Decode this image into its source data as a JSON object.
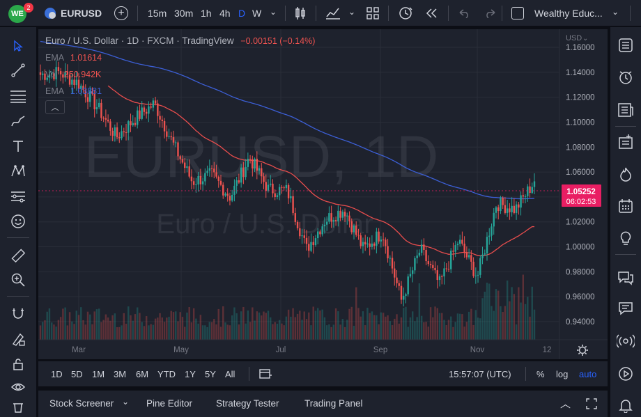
{
  "topbar": {
    "logo_badge": "2",
    "symbol": "EURUSD",
    "intervals": [
      "15m",
      "30m",
      "1h",
      "4h",
      "D",
      "W"
    ],
    "active_interval": "D",
    "layout_name": "Wealthy Educ..."
  },
  "legend": {
    "title": "Euro / U.S. Dollar · 1D · FXCM · TradingView",
    "change": "−0.00151 (−0.14%)",
    "ema1_label": "EMA",
    "ema1_value": "1.01614",
    "vol_label": "Vol",
    "vol_value": "250.942K",
    "ema2_label": "EMA",
    "ema2_value": "1.03881"
  },
  "watermark": {
    "symbol": "EURUSD, 1D",
    "name": "Euro / U.S. Dollar"
  },
  "price_axis": {
    "currency": "USD",
    "ticks": [
      "1.16000",
      "1.14000",
      "1.12000",
      "1.10000",
      "1.08000",
      "1.06000",
      "1.04000",
      "1.02000",
      "1.00000",
      "0.98000",
      "0.96000",
      "0.94000"
    ],
    "last_price": "1.05252",
    "countdown": "06:02:53"
  },
  "time_axis": {
    "labels": [
      "Mar",
      "May",
      "Jul",
      "Sep",
      "Nov",
      "12"
    ]
  },
  "range_bar": {
    "ranges": [
      "1D",
      "5D",
      "1M",
      "3M",
      "6M",
      "YTD",
      "1Y",
      "5Y",
      "All"
    ],
    "clock": "15:57:07 (UTC)",
    "percent": "%",
    "log": "log",
    "auto": "auto"
  },
  "panel_tabs": [
    "Stock Screener",
    "Pine Editor",
    "Strategy Tester",
    "Trading Panel"
  ],
  "colors": {
    "up": "#26a69a",
    "down": "#ef5350",
    "ema_fast": "#e84d4d",
    "ema_slow": "#3c5fd6",
    "accent": "#2962ff",
    "last_price_bg": "#e91e63"
  },
  "chart_data": {
    "type": "candlestick",
    "symbol": "EURUSD",
    "interval": "1D",
    "ylim": [
      0.935,
      1.165
    ],
    "price_path": [
      {
        "date": "Feb-01",
        "price": 1.138
      },
      {
        "date": "Feb-10",
        "price": 1.14
      },
      {
        "date": "Feb-20",
        "price": 1.131
      },
      {
        "date": "Mar-01",
        "price": 1.112
      },
      {
        "date": "Mar-08",
        "price": 1.088
      },
      {
        "date": "Mar-20",
        "price": 1.103
      },
      {
        "date": "Mar-31",
        "price": 1.115
      },
      {
        "date": "Apr-15",
        "price": 1.082
      },
      {
        "date": "Apr-28",
        "price": 1.052
      },
      {
        "date": "May-10",
        "price": 1.058
      },
      {
        "date": "May-13",
        "price": 1.04
      },
      {
        "date": "May-31",
        "price": 1.072
      },
      {
        "date": "Jun-15",
        "price": 1.046
      },
      {
        "date": "Jun-30",
        "price": 1.045
      },
      {
        "date": "Jul-14",
        "price": 0.998
      },
      {
        "date": "Jul-25",
        "price": 1.022
      },
      {
        "date": "Aug-10",
        "price": 1.03
      },
      {
        "date": "Aug-25",
        "price": 0.998
      },
      {
        "date": "Sep-12",
        "price": 1.012
      },
      {
        "date": "Sep-28",
        "price": 0.957
      },
      {
        "date": "Oct-05",
        "price": 0.998
      },
      {
        "date": "Oct-13",
        "price": 0.97
      },
      {
        "date": "Oct-26",
        "price": 1.005
      },
      {
        "date": "Nov-03",
        "price": 0.976
      },
      {
        "date": "Nov-11",
        "price": 1.035
      },
      {
        "date": "Nov-22",
        "price": 1.03
      },
      {
        "date": "Dec-02",
        "price": 1.05252
      }
    ],
    "ema_fast_last": 1.01614,
    "ema_slow_last": 1.03881,
    "volume_last": "250.942K",
    "last_price": 1.05252
  }
}
